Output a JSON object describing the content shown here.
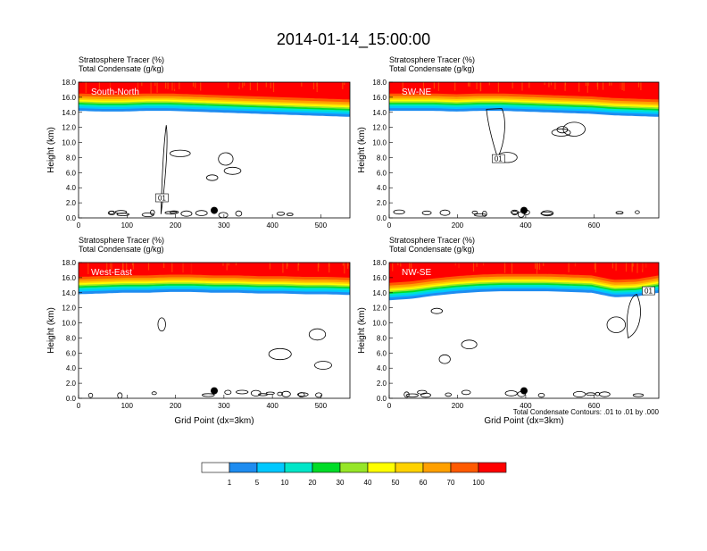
{
  "title": "2014-01-14_15:00:00",
  "colors": {
    "levels": [
      "#ffffff",
      "#1e8cf0",
      "#00c8ff",
      "#00e6c8",
      "#00dc28",
      "#96e628",
      "#ffff00",
      "#ffd200",
      "#ffa000",
      "#ff5a00",
      "#ff0000"
    ],
    "outline": "#000000",
    "background": "#ffffff"
  },
  "chart_data": [
    {
      "type": "heatmap",
      "label": "South-North",
      "heading": [
        "Stratosphere Tracer   (%)",
        "Total Condensate   (g/kg)"
      ],
      "ylabel": "Height (km)",
      "xlabel": "",
      "xlim": [
        0,
        560
      ],
      "ylim": [
        0,
        18
      ],
      "xticks": [
        0,
        100,
        200,
        300,
        400,
        500
      ],
      "yticks": [
        0.0,
        2.0,
        4.0,
        6.0,
        8.0,
        10.0,
        12.0,
        14.0,
        16.0,
        18.0
      ],
      "marker": {
        "x": 280,
        "y": 1.0
      },
      "contour_box": {
        "text": "01",
        "x": 172,
        "y": 2.6
      },
      "tropopause_km": [
        15.6,
        15.5,
        15.5,
        15.6,
        15.6,
        15.5,
        15.4,
        15.3,
        15.2,
        15.1,
        15.0,
        14.9,
        14.8
      ]
    },
    {
      "type": "heatmap",
      "label": "SW-NE",
      "heading": [
        "Stratosphere Tracer   (%)",
        "Total Condensate   (g/kg)"
      ],
      "ylabel": "Height (km)",
      "xlabel": "",
      "xlim": [
        0,
        790
      ],
      "ylim": [
        0,
        18
      ],
      "xticks": [
        0,
        200,
        400,
        600
      ],
      "yticks": [
        0.0,
        2.0,
        4.0,
        6.0,
        8.0,
        10.0,
        12.0,
        14.0,
        16.0,
        18.0
      ],
      "marker": {
        "x": 395,
        "y": 1.0
      },
      "contour_box": {
        "text": "01",
        "x": 320,
        "y": 7.8
      },
      "tropopause_km": [
        15.6,
        15.6,
        15.6,
        15.5,
        15.6,
        15.6,
        15.5,
        15.4,
        15.3,
        15.2,
        15.0,
        14.9,
        14.8
      ]
    },
    {
      "type": "heatmap",
      "label": "West-East",
      "heading": [
        "Stratosphere Tracer   (%)",
        "Total Condensate   (g/kg)"
      ],
      "ylabel": "Height (km)",
      "xlabel": "Grid Point (dx=3km)",
      "xlim": [
        0,
        560
      ],
      "ylim": [
        0,
        18
      ],
      "xticks": [
        0,
        100,
        200,
        300,
        400,
        500
      ],
      "yticks": [
        0.0,
        2.0,
        4.0,
        6.0,
        8.0,
        10.0,
        12.0,
        14.0,
        16.0,
        18.0
      ],
      "marker": {
        "x": 280,
        "y": 1.0
      },
      "contour_box": null,
      "tropopause_km": [
        15.2,
        15.3,
        15.4,
        15.4,
        15.5,
        15.5,
        15.4,
        15.4,
        15.3,
        15.3,
        15.2,
        15.2,
        15.1
      ]
    },
    {
      "type": "heatmap",
      "label": "NW-SE",
      "heading": [
        "Stratosphere Tracer   (%)",
        "Total Condensate   (g/kg)"
      ],
      "ylabel": "Height (km)",
      "xlabel": "Grid Point (dx=3km)",
      "xlim": [
        0,
        790
      ],
      "ylim": [
        0,
        18
      ],
      "xticks": [
        0,
        200,
        400,
        600
      ],
      "yticks": [
        0.0,
        2.0,
        4.0,
        6.0,
        8.0,
        10.0,
        12.0,
        14.0,
        16.0,
        18.0
      ],
      "marker": {
        "x": 395,
        "y": 1.0
      },
      "contour_box": {
        "text": "01",
        "x": 760,
        "y": 14.2
      },
      "tropopause_km": [
        14.4,
        14.6,
        15.0,
        15.3,
        15.5,
        15.6,
        15.6,
        15.6,
        15.5,
        15.4,
        14.8,
        14.9,
        15.4
      ]
    }
  ],
  "contour_note": "Total Condensate Contours: .01 to .01 by .000",
  "colorbar": {
    "labels": [
      "1",
      "5",
      "10",
      "20",
      "30",
      "40",
      "50",
      "60",
      "70",
      "100"
    ]
  }
}
